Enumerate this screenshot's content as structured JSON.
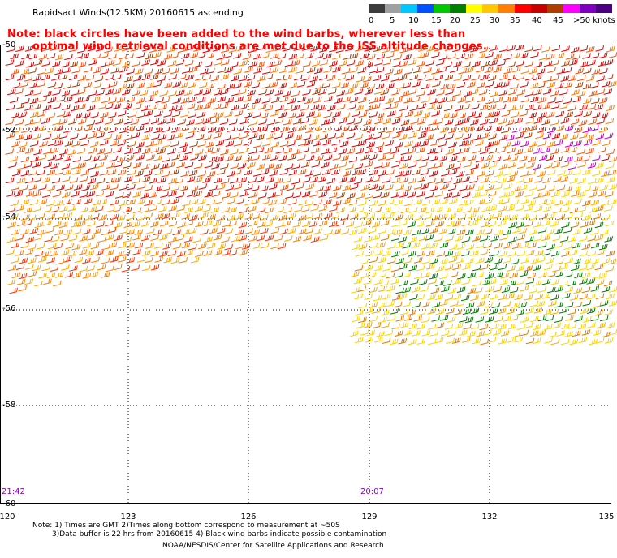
{
  "title": "Rapidsact Winds(12.5KM) 20160615 ascending",
  "note_line1": "Note: black circles have been added to the wind barbs, wherever less than",
  "note_line2": "optimal wind retrieval conditions are met due to the ISS altitude changes.",
  "colorbar": {
    "labels": [
      "0",
      "5",
      "10",
      "15",
      "20",
      "25",
      "30",
      "35",
      "40",
      "45",
      ">50 knots"
    ],
    "colors": [
      "#3c3c3c",
      "#a0a0a0",
      "#00c8ff",
      "#0050ff",
      "#00c800",
      "#008000",
      "#ffff00",
      "#ffc800",
      "#ff8000",
      "#ff0000",
      "#c80000",
      "#b03c00",
      "#ff00ff",
      "#8000c0",
      "#4b0082"
    ]
  },
  "lat_labels": [
    "-50",
    "-52",
    "-54",
    "-56",
    "-58",
    "-60"
  ],
  "lon_labels": [
    "120",
    "123",
    "126",
    "129",
    "132",
    "135"
  ],
  "times": {
    "left": "21:42",
    "right": "20:07"
  },
  "footer": {
    "line1": "Note: 1) Times are GMT 2)Times along bottom correspond to measurement at ~50S",
    "line2": "3)Data buffer is 22 hrs from 20160615 4) Black wind barbs indicate possible contamination",
    "line3": "NOAA/NESDIS/Center for Satellite Applications and Research"
  }
}
